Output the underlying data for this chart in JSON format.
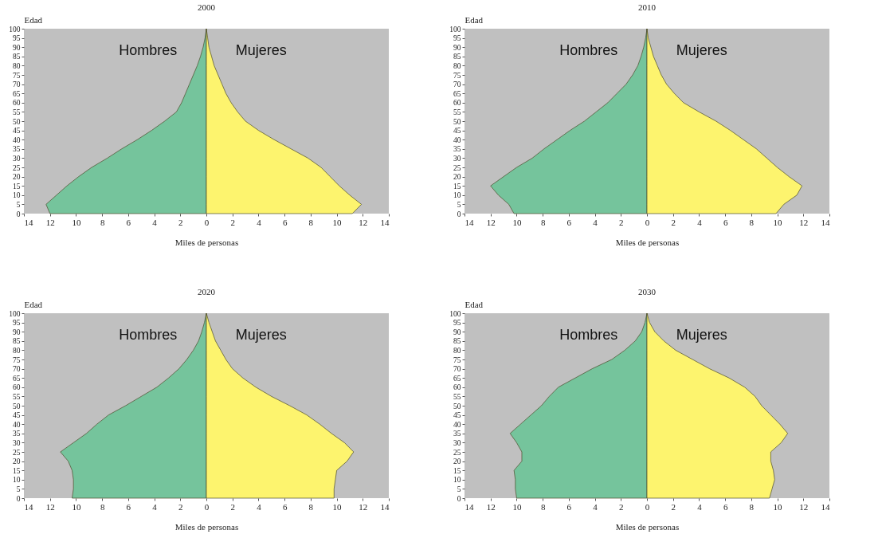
{
  "chart_data": [
    {
      "type": "area",
      "orientation": "horizontal",
      "title": "2000",
      "xlabel": "Miles de personas",
      "ylabel": "Edad",
      "x": [
        0,
        5,
        10,
        15,
        20,
        25,
        30,
        35,
        40,
        45,
        50,
        55,
        60,
        65,
        70,
        75,
        80,
        85,
        90,
        95,
        100
      ],
      "series": [
        {
          "name": "Hombres",
          "color": "#75c49c",
          "values": [
            -12.0,
            -12.3,
            -11.5,
            -10.7,
            -9.8,
            -8.8,
            -7.6,
            -6.5,
            -5.3,
            -4.2,
            -3.2,
            -2.3,
            -1.9,
            -1.6,
            -1.3,
            -1.0,
            -0.7,
            -0.45,
            -0.25,
            -0.1,
            0
          ]
        },
        {
          "name": "Mujeres",
          "color": "#fdf46e",
          "values": [
            11.2,
            11.9,
            11.0,
            10.2,
            9.5,
            8.8,
            7.8,
            6.5,
            5.2,
            4.0,
            3.0,
            2.4,
            1.9,
            1.5,
            1.2,
            0.9,
            0.6,
            0.4,
            0.2,
            0.1,
            0
          ]
        }
      ],
      "xlim": [
        -14,
        14
      ],
      "xticks": [
        {
          "value": -14,
          "label": "14"
        },
        {
          "value": -12,
          "label": "12"
        },
        {
          "value": -10,
          "label": "10"
        },
        {
          "value": -8,
          "label": "8"
        },
        {
          "value": -6,
          "label": "6"
        },
        {
          "value": -4,
          "label": "4"
        },
        {
          "value": -2,
          "label": "2"
        },
        0,
        2,
        4,
        6,
        8,
        10,
        12,
        14
      ],
      "ylim": [
        0,
        100
      ],
      "yticks": [
        0,
        5,
        10,
        15,
        20,
        25,
        30,
        35,
        40,
        45,
        50,
        55,
        60,
        65,
        70,
        75,
        80,
        85,
        90,
        95,
        100
      ]
    },
    {
      "type": "area",
      "orientation": "horizontal",
      "title": "2010",
      "xlabel": "Miles de personas",
      "ylabel": "Edad",
      "x": [
        0,
        5,
        10,
        15,
        20,
        25,
        30,
        35,
        40,
        45,
        50,
        55,
        60,
        65,
        70,
        75,
        80,
        85,
        90,
        95,
        100
      ],
      "series": [
        {
          "name": "Hombres",
          "color": "#75c49c",
          "values": [
            -10.2,
            -10.6,
            -11.4,
            -12.0,
            -11.0,
            -10.0,
            -8.8,
            -7.9,
            -6.9,
            -5.9,
            -4.8,
            -3.9,
            -3.0,
            -2.3,
            -1.6,
            -1.1,
            -0.7,
            -0.45,
            -0.25,
            -0.1,
            0
          ]
        },
        {
          "name": "Mujeres",
          "color": "#fdf46e",
          "values": [
            9.9,
            10.5,
            11.5,
            11.9,
            10.9,
            10.0,
            9.2,
            8.4,
            7.4,
            6.4,
            5.3,
            4.0,
            2.8,
            2.1,
            1.5,
            1.1,
            0.8,
            0.5,
            0.3,
            0.1,
            0
          ]
        }
      ],
      "xlim": [
        -14,
        14
      ],
      "xticks": [
        {
          "value": -14,
          "label": "14"
        },
        {
          "value": -12,
          "label": "12"
        },
        {
          "value": -10,
          "label": "10"
        },
        {
          "value": -8,
          "label": "8"
        },
        {
          "value": -6,
          "label": "6"
        },
        {
          "value": -4,
          "label": "4"
        },
        {
          "value": -2,
          "label": "2"
        },
        0,
        2,
        4,
        6,
        8,
        10,
        12,
        14
      ],
      "ylim": [
        0,
        100
      ],
      "yticks": [
        0,
        5,
        10,
        15,
        20,
        25,
        30,
        35,
        40,
        45,
        50,
        55,
        60,
        65,
        70,
        75,
        80,
        85,
        90,
        95,
        100
      ]
    },
    {
      "type": "area",
      "orientation": "horizontal",
      "title": "2020",
      "xlabel": "Miles de personas",
      "ylabel": "Edad",
      "x": [
        0,
        5,
        10,
        15,
        20,
        25,
        30,
        35,
        40,
        45,
        50,
        55,
        60,
        65,
        70,
        75,
        80,
        85,
        90,
        95,
        100
      ],
      "series": [
        {
          "name": "Hombres",
          "color": "#75c49c",
          "values": [
            -10.3,
            -10.2,
            -10.2,
            -10.3,
            -10.6,
            -11.2,
            -10.2,
            -9.2,
            -8.4,
            -7.5,
            -6.2,
            -5.0,
            -3.8,
            -2.9,
            -2.1,
            -1.5,
            -1.0,
            -0.6,
            -0.35,
            -0.15,
            0
          ]
        },
        {
          "name": "Mujeres",
          "color": "#fdf46e",
          "values": [
            9.8,
            9.8,
            9.9,
            10.0,
            10.8,
            11.3,
            10.6,
            9.6,
            8.7,
            7.7,
            6.4,
            5.0,
            3.8,
            2.8,
            2.0,
            1.5,
            1.1,
            0.7,
            0.45,
            0.2,
            0
          ]
        }
      ],
      "xlim": [
        -14,
        14
      ],
      "xticks": [
        {
          "value": -14,
          "label": "14"
        },
        {
          "value": -12,
          "label": "12"
        },
        {
          "value": -10,
          "label": "10"
        },
        {
          "value": -8,
          "label": "8"
        },
        {
          "value": -6,
          "label": "6"
        },
        {
          "value": -4,
          "label": "4"
        },
        {
          "value": -2,
          "label": "2"
        },
        0,
        2,
        4,
        6,
        8,
        10,
        12,
        14
      ],
      "ylim": [
        0,
        100
      ],
      "yticks": [
        0,
        5,
        10,
        15,
        20,
        25,
        30,
        35,
        40,
        45,
        50,
        55,
        60,
        65,
        70,
        75,
        80,
        85,
        90,
        95,
        100
      ]
    },
    {
      "type": "area",
      "orientation": "horizontal",
      "title": "2030",
      "xlabel": "Miles de personas",
      "ylabel": "Edad",
      "x": [
        0,
        5,
        10,
        15,
        20,
        25,
        30,
        35,
        40,
        45,
        50,
        55,
        60,
        65,
        70,
        75,
        80,
        85,
        90,
        95,
        100
      ],
      "series": [
        {
          "name": "Hombres",
          "color": "#75c49c",
          "values": [
            -10.0,
            -10.1,
            -10.1,
            -10.2,
            -9.6,
            -9.6,
            -10.0,
            -10.5,
            -9.7,
            -8.9,
            -8.1,
            -7.5,
            -6.8,
            -5.5,
            -4.2,
            -2.7,
            -1.7,
            -0.9,
            -0.4,
            -0.15,
            0
          ]
        },
        {
          "name": "Mujeres",
          "color": "#fdf46e",
          "values": [
            9.4,
            9.6,
            9.8,
            9.7,
            9.5,
            9.5,
            10.3,
            10.8,
            10.2,
            9.5,
            8.8,
            8.3,
            7.5,
            6.3,
            4.8,
            3.5,
            2.2,
            1.3,
            0.6,
            0.2,
            0
          ]
        }
      ],
      "xlim": [
        -14,
        14
      ],
      "xticks": [
        {
          "value": -14,
          "label": "14"
        },
        {
          "value": -12,
          "label": "12"
        },
        {
          "value": -10,
          "label": "10"
        },
        {
          "value": -8,
          "label": "8"
        },
        {
          "value": -6,
          "label": "6"
        },
        {
          "value": -4,
          "label": "4"
        },
        {
          "value": -2,
          "label": "2"
        },
        0,
        2,
        4,
        6,
        8,
        10,
        12,
        14
      ],
      "ylim": [
        0,
        100
      ],
      "yticks": [
        0,
        5,
        10,
        15,
        20,
        25,
        30,
        35,
        40,
        45,
        50,
        55,
        60,
        65,
        70,
        75,
        80,
        85,
        90,
        95,
        100
      ]
    }
  ]
}
